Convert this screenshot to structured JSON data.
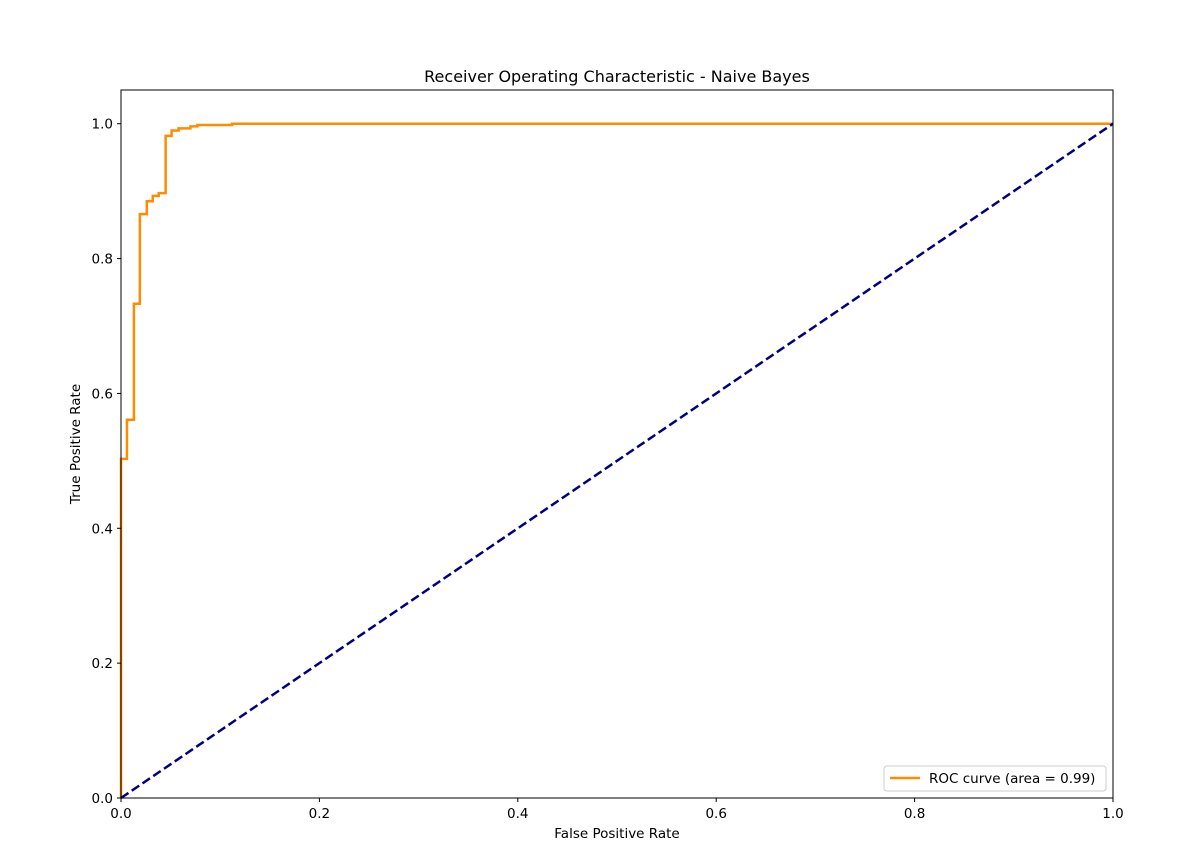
{
  "chart_data": {
    "type": "line",
    "title": "Receiver Operating Characteristic - Naive Bayes",
    "xlabel": "False Positive Rate",
    "ylabel": "True Positive Rate",
    "xlim": [
      0.0,
      1.0
    ],
    "ylim": [
      0.0,
      1.05
    ],
    "xticks": [
      "0.0",
      "0.2",
      "0.4",
      "0.6",
      "0.8",
      "1.0"
    ],
    "yticks": [
      "0.0",
      "0.2",
      "0.4",
      "0.6",
      "0.8",
      "1.0"
    ],
    "grid": false,
    "legend_position": "lower right",
    "colors": {
      "roc": "#ff8c00",
      "chance": "#000080"
    },
    "series": [
      {
        "name": "ROC curve (area = 0.99)",
        "style": "solid",
        "color": "#ff8c00",
        "x": [
          0.0,
          0.0,
          0.006,
          0.006,
          0.013,
          0.013,
          0.019,
          0.019,
          0.026,
          0.026,
          0.032,
          0.032,
          0.038,
          0.038,
          0.045,
          0.045,
          0.051,
          0.051,
          0.058,
          0.058,
          0.07,
          0.07,
          0.077,
          0.077,
          0.112,
          0.112,
          1.0
        ],
        "y": [
          0.0,
          0.503,
          0.503,
          0.561,
          0.561,
          0.733,
          0.733,
          0.866,
          0.866,
          0.885,
          0.885,
          0.893,
          0.893,
          0.897,
          0.897,
          0.982,
          0.982,
          0.99,
          0.99,
          0.993,
          0.993,
          0.996,
          0.996,
          0.998,
          0.998,
          1.0,
          1.0
        ]
      },
      {
        "name": "",
        "style": "dashed",
        "color": "#000080",
        "x": [
          0.0,
          1.0
        ],
        "y": [
          0.0,
          1.0
        ]
      }
    ]
  }
}
